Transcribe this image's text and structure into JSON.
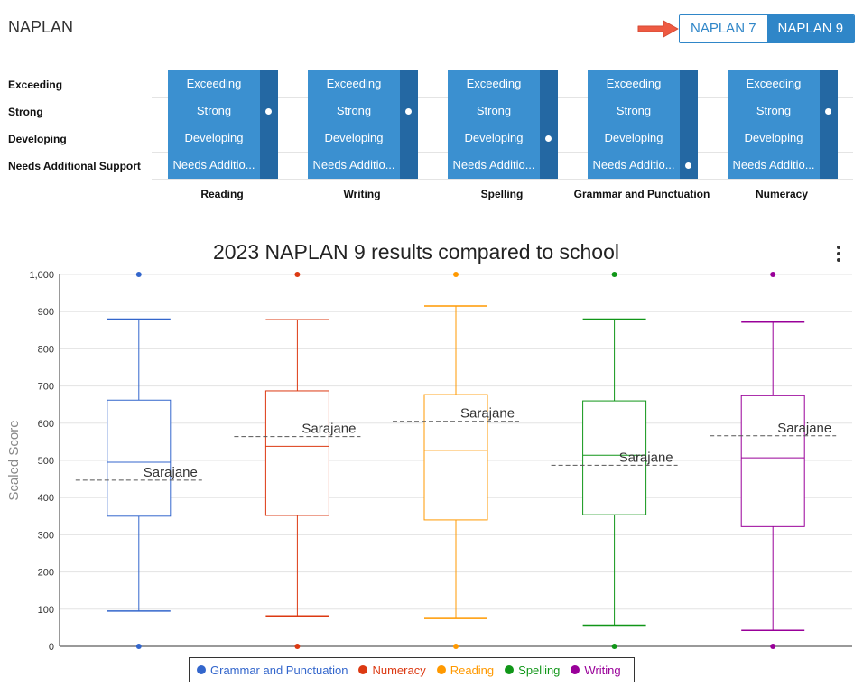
{
  "header": {
    "title": "NAPLAN",
    "toggle": [
      {
        "label": "NAPLAN 7",
        "active": false
      },
      {
        "label": "NAPLAN 9",
        "active": true
      }
    ]
  },
  "bands": [
    "Exceeding",
    "Strong",
    "Developing",
    "Needs Additional Support"
  ],
  "band_cells": [
    "Exceeding",
    "Strong",
    "Developing",
    "Needs Additio..."
  ],
  "grid": [
    {
      "domain": "Reading",
      "marked_band": "Strong"
    },
    {
      "domain": "Writing",
      "marked_band": "Strong"
    },
    {
      "domain": "Spelling",
      "marked_band": "Developing"
    },
    {
      "domain": "Grammar and Punctuation",
      "marked_band": "Needs Additional Support"
    },
    {
      "domain": "Numeracy",
      "marked_band": "Strong"
    }
  ],
  "chart_data": {
    "type": "box",
    "title": "2023 NAPLAN 9 results compared to school",
    "ylabel": "Scaled Score",
    "ylim": [
      0,
      1000
    ],
    "yticks": [
      "0",
      "100",
      "200",
      "300",
      "400",
      "500",
      "600",
      "700",
      "800",
      "900",
      "1,000"
    ],
    "grid": true,
    "legend_position": "bottom",
    "student_label": "Sarajane",
    "series": [
      {
        "name": "Grammar and Punctuation",
        "color": "#3366cc",
        "min": 95,
        "q1": 350,
        "median": 495,
        "q3": 662,
        "max": 880,
        "outlier_high": 1000,
        "outlier_low": 0,
        "student": 447
      },
      {
        "name": "Numeracy",
        "color": "#dc3912",
        "min": 82,
        "q1": 352,
        "median": 538,
        "q3": 687,
        "max": 878,
        "outlier_high": 1000,
        "outlier_low": 0,
        "student": 564
      },
      {
        "name": "Reading",
        "color": "#ff9900",
        "min": 75,
        "q1": 340,
        "median": 527,
        "q3": 677,
        "max": 915,
        "outlier_high": 1000,
        "outlier_low": 0,
        "student": 605
      },
      {
        "name": "Spelling",
        "color": "#109618",
        "min": 57,
        "q1": 354,
        "median": 514,
        "q3": 660,
        "max": 880,
        "outlier_high": 1000,
        "outlier_low": 0,
        "student": 487
      },
      {
        "name": "Writing",
        "color": "#990099",
        "min": 43,
        "q1": 322,
        "median": 507,
        "q3": 674,
        "max": 872,
        "outlier_high": 1000,
        "outlier_low": 0,
        "student": 566
      }
    ]
  }
}
